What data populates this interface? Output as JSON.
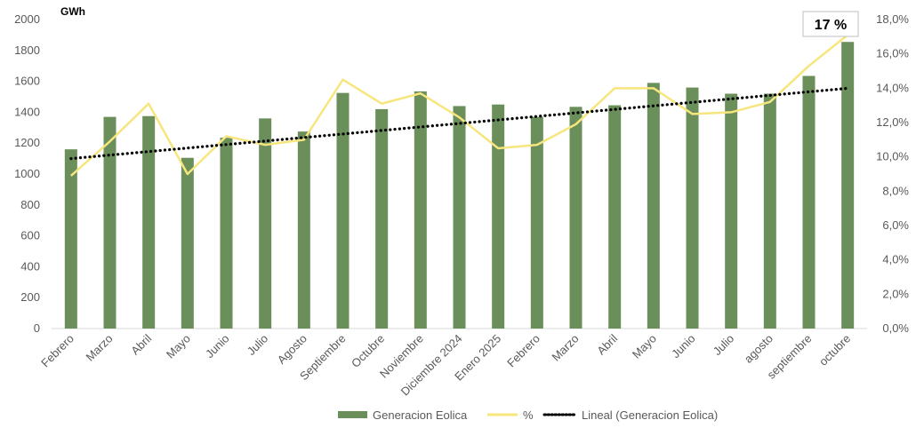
{
  "chart_data": {
    "type": "bar",
    "categories": [
      "Febrero",
      "Marzo",
      "Abril",
      "Mayo",
      "Junio",
      "Julio",
      "Agosto",
      "Septiembre",
      "Octubre",
      "Noviembre",
      "Diciembre 2024",
      "Enero 2025",
      "Febrero",
      "Marzo",
      "Abril",
      "Mayo",
      "Junio",
      "Julio",
      "agosto",
      "septiembre",
      "octubre"
    ],
    "series": [
      {
        "name": "Generacion Eolica",
        "type": "bar",
        "axis": "left",
        "color": "#6a8f5a",
        "values": [
          1160,
          1370,
          1375,
          1105,
          1235,
          1360,
          1275,
          1525,
          1420,
          1535,
          1440,
          1450,
          1370,
          1435,
          1445,
          1590,
          1560,
          1520,
          1520,
          1635,
          1855
        ]
      },
      {
        "name": "%",
        "type": "line",
        "axis": "right",
        "color": "#f7e57d",
        "values": [
          8.9,
          10.9,
          13.1,
          9.0,
          11.2,
          10.7,
          11.0,
          14.5,
          13.1,
          13.7,
          12.3,
          10.5,
          10.7,
          11.9,
          14.0,
          14.0,
          12.5,
          12.6,
          13.2,
          15.3,
          17.1
        ]
      },
      {
        "name": "Lineal (Generacion Eolica)",
        "type": "trendline",
        "axis": "left",
        "color": "#000000",
        "values": [
          1100,
          1125,
          1147,
          1170,
          1193,
          1215,
          1238,
          1261,
          1283,
          1306,
          1329,
          1351,
          1374,
          1397,
          1419,
          1442,
          1465,
          1487,
          1510,
          1533,
          1555
        ]
      }
    ],
    "y_left": {
      "unit": "GWh",
      "ylim": [
        0,
        2000
      ],
      "ticks": [
        "0",
        "200",
        "400",
        "600",
        "800",
        "1000",
        "1200",
        "1400",
        "1600",
        "1800",
        "2000"
      ]
    },
    "y_right": {
      "ylim": [
        0,
        18
      ],
      "ticks": [
        "0,0%",
        "2,0%",
        "4,0%",
        "6,0%",
        "8,0%",
        "10,0%",
        "12,0%",
        "14,0%",
        "16,0%",
        "18,0%"
      ]
    },
    "annotation": "17 %",
    "legend": [
      "Generacion Eolica",
      "%",
      "Lineal (Generacion Eolica)"
    ],
    "legend_position": "bottom",
    "grid": false
  }
}
